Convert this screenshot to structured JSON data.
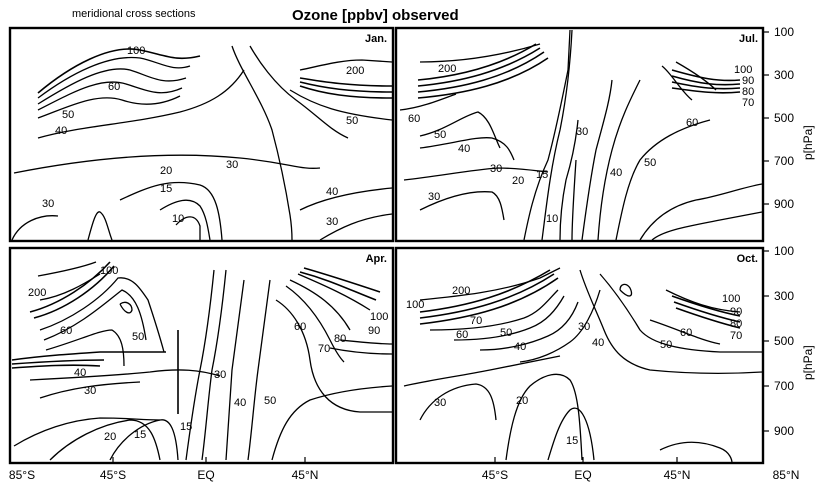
{
  "header": {
    "left_caption": "meridional cross sections",
    "title": "Ozone  [ppbv]  observed"
  },
  "chart_data": [
    {
      "type": "contour",
      "panel": "top-left",
      "month": "Jan.",
      "contour_levels_labeled": [
        10,
        15,
        20,
        30,
        30,
        30,
        40,
        40,
        50,
        50,
        60,
        100,
        200
      ]
    },
    {
      "type": "contour",
      "panel": "top-right",
      "month": "Jul.",
      "contour_levels_labeled": [
        10,
        15,
        20,
        30,
        30,
        30,
        40,
        40,
        50,
        50,
        60,
        60,
        70,
        80,
        90,
        100,
        200
      ]
    },
    {
      "type": "contour",
      "panel": "bottom-left",
      "month": "Apr.",
      "contour_levels_labeled": [
        15,
        15,
        20,
        30,
        30,
        40,
        40,
        50,
        50,
        60,
        60,
        70,
        80,
        90,
        100,
        100,
        200
      ]
    },
    {
      "type": "contour",
      "panel": "bottom-right",
      "month": "Oct.",
      "contour_levels_labeled": [
        15,
        20,
        30,
        30,
        40,
        40,
        50,
        50,
        60,
        60,
        70,
        70,
        80,
        90,
        100,
        100,
        200
      ]
    }
  ],
  "axes": {
    "x_ticks_left": [
      "85°S",
      "45°S",
      "EQ",
      "45°N"
    ],
    "x_ticks_right": [
      "45°S",
      "EQ",
      "45°N",
      "85°N"
    ],
    "y_ticks": [
      "100",
      "300",
      "500",
      "700",
      "900"
    ],
    "y_ticks_lower_top": "100",
    "y_label": "p[hPa]"
  }
}
